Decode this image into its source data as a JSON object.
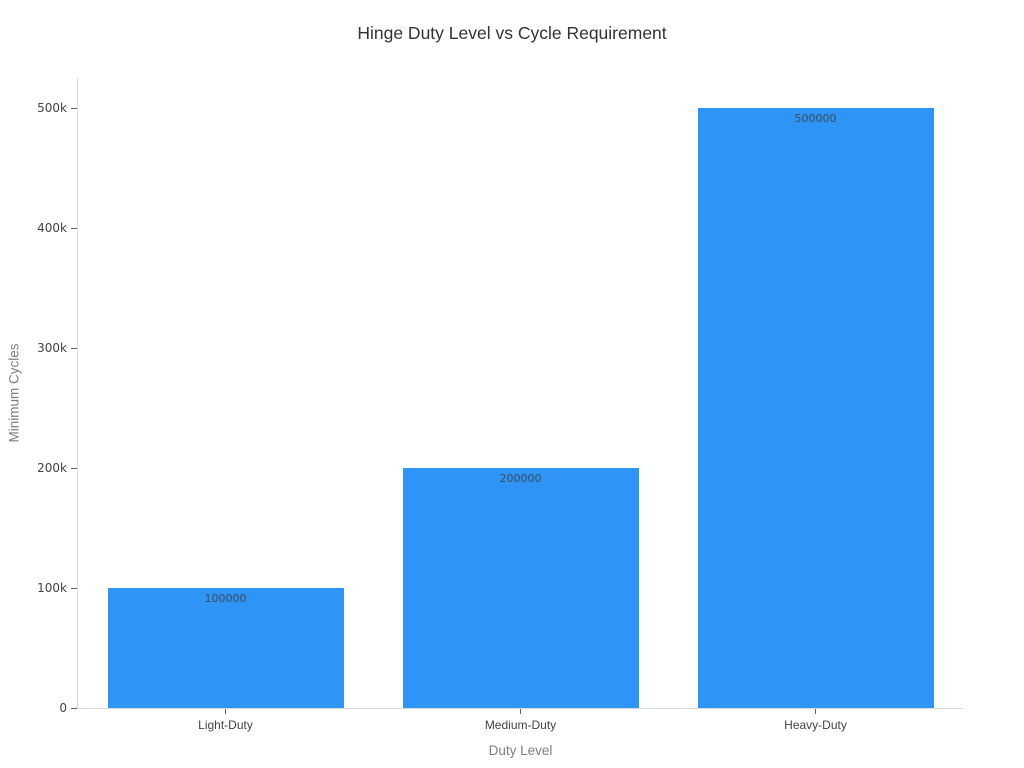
{
  "chart_data": {
    "type": "bar",
    "title": "Hinge Duty Level vs Cycle Requirement",
    "xlabel": "Duty Level",
    "ylabel": "Minimum Cycles",
    "categories": [
      "Light-Duty",
      "Medium-Duty",
      "Heavy-Duty"
    ],
    "values": [
      100000,
      200000,
      500000
    ],
    "bar_labels": [
      "100000",
      "200000",
      "500000"
    ],
    "ylim": [
      0,
      525000
    ],
    "yticks": [
      {
        "value": 0,
        "label": "0"
      },
      {
        "value": 100000,
        "label": "100k"
      },
      {
        "value": 200000,
        "label": "200k"
      },
      {
        "value": 300000,
        "label": "300k"
      },
      {
        "value": 400000,
        "label": "400k"
      },
      {
        "value": 500000,
        "label": "500k"
      }
    ],
    "grid": false,
    "legend": false,
    "orientation": "vertical",
    "bar_label_position": "inside-top",
    "colors": {
      "bar": "#2e94f5",
      "title_text": "#333333",
      "tick_text": "#444444",
      "axis_title_text": "#7f7f7f",
      "bar_label_text": "#3f4c59",
      "axis_line": "#d9d9d9",
      "tick_mark": "#666666",
      "background": "#ffffff"
    }
  }
}
